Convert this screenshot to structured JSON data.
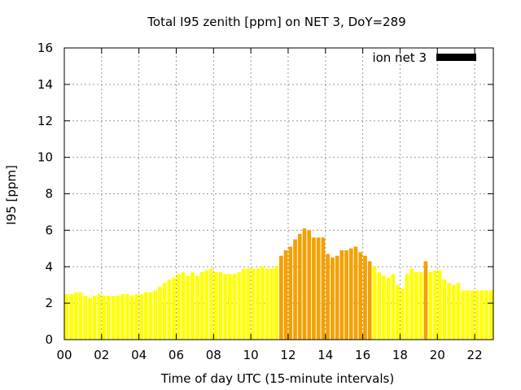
{
  "chart_data": {
    "type": "bar",
    "title": "Total I95 zenith [ppm] on NET 3, DoY=289",
    "xlabel": "Time of day UTC (15-minute intervals)",
    "ylabel": "I95 [ppm]",
    "xlim": [
      0,
      23
    ],
    "ylim": [
      0,
      16
    ],
    "x_ticks": [
      "00",
      "02",
      "04",
      "06",
      "08",
      "10",
      "12",
      "14",
      "16",
      "18",
      "20",
      "22"
    ],
    "y_ticks": [
      "0",
      "2",
      "4",
      "6",
      "8",
      "10",
      "12",
      "14",
      "16"
    ],
    "grid": true,
    "legend_position": "top-right",
    "series": [
      {
        "name": "ion net 3",
        "color": "#000000",
        "x": [
          0.125,
          0.375,
          0.625,
          0.875,
          1.125,
          1.375,
          1.625,
          1.875,
          2.125,
          2.375,
          2.625,
          2.875,
          3.125,
          3.375,
          3.625,
          3.875,
          4.125,
          4.375,
          4.625,
          4.875,
          5.125,
          5.375,
          5.625,
          5.875,
          6.125,
          6.375,
          6.625,
          6.875,
          7.125,
          7.375,
          7.625,
          7.875,
          8.125,
          8.375,
          8.625,
          8.875,
          9.125,
          9.375,
          9.625,
          9.875,
          10.125,
          10.375,
          10.625,
          10.875,
          11.125,
          11.375,
          11.625,
          11.875,
          12.125,
          12.375,
          12.625,
          12.875,
          13.125,
          13.375,
          13.625,
          13.875,
          14.125,
          14.375,
          14.625,
          14.875,
          15.125,
          15.375,
          15.625,
          15.875,
          16.125,
          16.375,
          16.625,
          16.875,
          17.125,
          17.375,
          17.625,
          17.875,
          18.125,
          18.375,
          18.625,
          18.875,
          19.125,
          19.375,
          19.625,
          19.875,
          20.125,
          20.375,
          20.625,
          20.875,
          21.125,
          21.375,
          21.625,
          21.875,
          22.125,
          22.375,
          22.625,
          22.875
        ],
        "values": [
          2.5,
          2.5,
          2.6,
          2.6,
          2.4,
          2.3,
          2.4,
          2.5,
          2.4,
          2.4,
          2.4,
          2.4,
          2.5,
          2.5,
          2.4,
          2.5,
          2.5,
          2.6,
          2.6,
          2.7,
          2.9,
          3.1,
          3.3,
          3.4,
          3.6,
          3.7,
          3.5,
          3.7,
          3.5,
          3.7,
          3.8,
          3.9,
          3.7,
          3.7,
          3.6,
          3.6,
          3.6,
          3.7,
          3.9,
          3.9,
          3.9,
          3.9,
          4.0,
          3.9,
          3.9,
          4.0,
          4.6,
          4.9,
          5.1,
          5.5,
          5.8,
          6.1,
          6.0,
          5.6,
          5.6,
          5.6,
          4.7,
          4.5,
          4.6,
          4.9,
          4.9,
          5.0,
          5.1,
          4.8,
          4.6,
          4.3,
          4.0,
          3.7,
          3.5,
          3.4,
          3.6,
          3.0,
          2.8,
          3.6,
          3.9,
          3.7,
          3.7,
          4.3,
          3.7,
          3.8,
          3.8,
          3.3,
          3.1,
          3.0,
          3.1,
          2.7,
          2.7,
          2.7,
          2.7,
          2.7,
          2.7,
          2.7
        ],
        "bar_colors": {
          "default": "#ffff00",
          "high": "#f5a000",
          "threshold": 4.3
        }
      }
    ]
  }
}
